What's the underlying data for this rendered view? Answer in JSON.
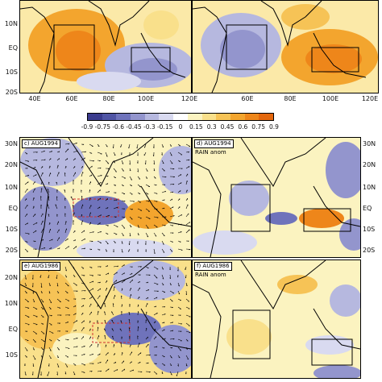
{
  "colorbar": {
    "labels": [
      "-0.9",
      "-0.75",
      "-0.6",
      "-0.45",
      "-0.3",
      "-0.15",
      "0",
      "0.15",
      "0.3",
      "0.45",
      "0.6",
      "0.75",
      "0.9"
    ],
    "colors": [
      "#3b3c8e",
      "#5055a5",
      "#6f73bb",
      "#9395cd",
      "#b6b8df",
      "#d9daf0",
      "#ffffff",
      "#fbf3c0",
      "#f9e08b",
      "#f6c356",
      "#f3a52e",
      "#ee861a",
      "#e4670d"
    ]
  },
  "axes": {
    "top_ylabels": [
      "10N",
      "EQ",
      "10S",
      "20S"
    ],
    "top_xlabels": [
      "40E",
      "60E",
      "80E",
      "100E",
      "120E"
    ],
    "lower_ylabels": [
      "30N",
      "20N",
      "10N",
      "EQ",
      "10S",
      "20S"
    ]
  },
  "panels": {
    "c": {
      "tag": "c) AUG1994",
      "subtitle": ""
    },
    "d": {
      "tag": "d) AUG1994",
      "subtitle": "RAIN anom"
    },
    "e": {
      "tag": "e) AUG1986",
      "subtitle": ""
    },
    "f": {
      "tag": "f) AUG1986",
      "subtitle": "RAIN anom"
    }
  }
}
